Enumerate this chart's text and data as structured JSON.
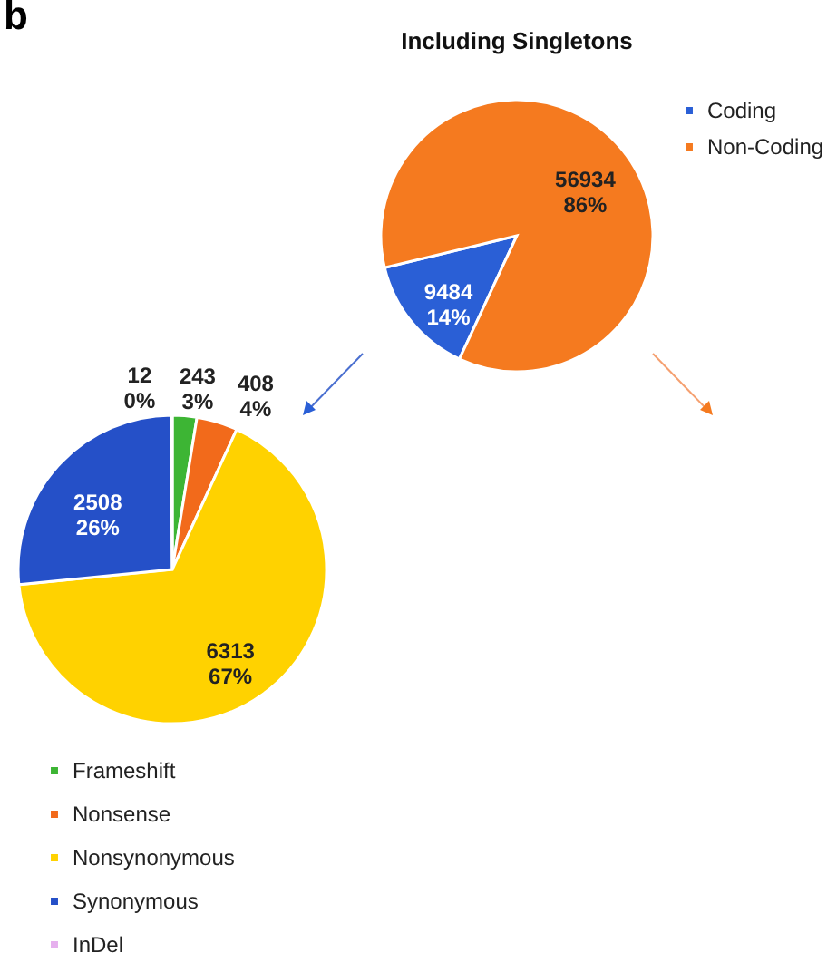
{
  "chart_data": [
    {
      "type": "pie",
      "title": "Including Singletons",
      "categories": [
        "Coding",
        "Non-Coding"
      ],
      "values": [
        9484,
        56934
      ],
      "colors": [
        "#2a5fd6",
        "#f57a1f"
      ],
      "value_labels": [
        "9484\n14%",
        "56934\n86%"
      ],
      "legend": "right",
      "annotations": [
        "b"
      ]
    },
    {
      "type": "pie",
      "categories": [
        "Frameshift",
        "Nonsense",
        "Nonsynonymous",
        "Synonymous",
        "InDel"
      ],
      "values": [
        243,
        408,
        6313,
        2508,
        12
      ],
      "colors": [
        "#3db534",
        "#f26a1b",
        "#ffd200",
        "#2550c8",
        "#e6b0ee"
      ],
      "value_labels": [
        "243\n3%",
        "408\n4%",
        "6313\n67%",
        "2508\n26%",
        "12\n0%"
      ],
      "legend": "bottom left"
    }
  ]
}
